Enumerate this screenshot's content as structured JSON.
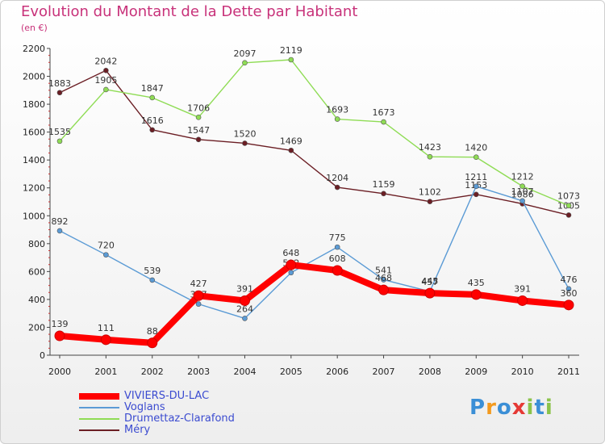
{
  "title": "Evolution du Montant de la Dette par Habitant",
  "subtitle": "(en €)",
  "logo": {
    "text": "Proxiti",
    "letters": [
      {
        "ch": "P",
        "color": "#3b8fd6"
      },
      {
        "ch": "r",
        "color": "#f39a1e"
      },
      {
        "ch": "o",
        "color": "#3b8fd6"
      },
      {
        "ch": "x",
        "color": "#e53935"
      },
      {
        "ch": "i",
        "color": "#8bc34a"
      },
      {
        "ch": "t",
        "color": "#3b8fd6"
      },
      {
        "ch": "i",
        "color": "#8bc34a"
      }
    ]
  },
  "chart_data": {
    "type": "line",
    "title": "Evolution du Montant de la Dette par Habitant",
    "subtitle": "(en €)",
    "xlabel": "",
    "ylabel": "",
    "categories": [
      "2000",
      "2001",
      "2002",
      "2003",
      "2004",
      "2005",
      "2006",
      "2007",
      "2008",
      "2009",
      "2010",
      "2011"
    ],
    "ylim": [
      0,
      2200
    ],
    "yticks": [
      0,
      200,
      400,
      600,
      800,
      1000,
      1200,
      1400,
      1600,
      1800,
      2000,
      2200
    ],
    "grid": false,
    "legend": "bottom-left",
    "series": [
      {
        "name": "Méry",
        "color": "#6b1e24",
        "values": [
          1883,
          2042,
          1616,
          1547,
          1520,
          1469,
          1204,
          1159,
          1102,
          1153,
          1086,
          1005
        ]
      },
      {
        "name": "Drumettaz-Clarafond",
        "color": "#8fdc55",
        "values": [
          1535,
          1905,
          1847,
          1706,
          2097,
          2119,
          1693,
          1673,
          1423,
          1420,
          1212,
          1073
        ]
      },
      {
        "name": "Voglans",
        "color": "#5b9bd5",
        "values": [
          892,
          720,
          539,
          367,
          264,
          592,
          775,
          541,
          457,
          1211,
          1107,
          476
        ]
      },
      {
        "name": "VIVIERS-DU-LAC",
        "color": "#ff0000",
        "values": [
          139,
          111,
          88,
          427,
          391,
          648,
          608,
          468,
          445,
          435,
          391,
          360
        ]
      }
    ]
  },
  "legend_items": [
    {
      "name": "VIVIERS-DU-LAC",
      "color": "#ff0000"
    },
    {
      "name": "Voglans",
      "color": "#5b9bd5"
    },
    {
      "name": "Drumettaz-Clarafond",
      "color": "#8fdc55"
    },
    {
      "name": "Méry",
      "color": "#6b1e24"
    }
  ]
}
